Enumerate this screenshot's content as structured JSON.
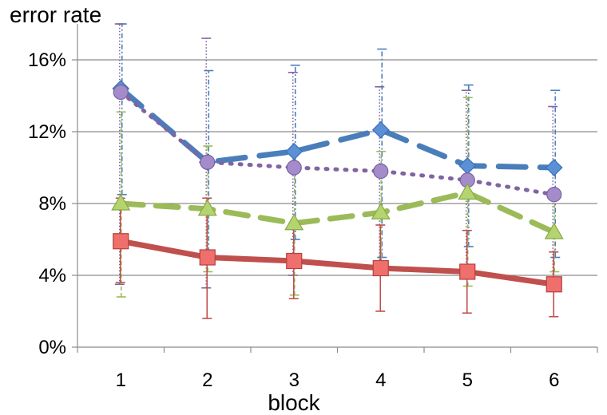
{
  "chart_data": {
    "type": "line",
    "title": "",
    "xlabel": "block",
    "ylabel": "error rate",
    "x": [
      1,
      2,
      3,
      4,
      5,
      6
    ],
    "ylim": [
      0,
      18
    ],
    "yticks": [
      0,
      4,
      8,
      12,
      16
    ],
    "ytick_labels": [
      "0%",
      "4%",
      "8%",
      "12%",
      "16%"
    ],
    "xtick_labels": [
      "1",
      "2",
      "3",
      "4",
      "5",
      "6"
    ],
    "grid": "horizontal",
    "legend": "none",
    "series": [
      {
        "marker": "diamond",
        "color": "#4a7ebb",
        "line_style": "dashed-long",
        "values": [
          14.4,
          10.3,
          10.9,
          12.1,
          10.1,
          10.0
        ],
        "err_low": [
          8.5,
          5.3,
          6.0,
          5.0,
          5.6,
          5.0
        ],
        "err_high": [
          18.0,
          15.4,
          15.7,
          16.6,
          14.6,
          14.3
        ]
      },
      {
        "marker": "circle",
        "color": "#8064a2",
        "line_style": "dotted",
        "values": [
          14.2,
          10.3,
          10.0,
          9.8,
          9.3,
          8.5
        ],
        "err_low": [
          3.5,
          3.3,
          4.0,
          4.5,
          4.0,
          3.7
        ],
        "err_high": [
          18.0,
          17.2,
          15.3,
          14.5,
          14.3,
          13.4
        ]
      },
      {
        "marker": "triangle",
        "color": "#9bbb59",
        "line_style": "dashed",
        "values": [
          8.0,
          7.7,
          6.9,
          7.5,
          8.6,
          6.4
        ],
        "err_low": [
          2.8,
          4.2,
          2.9,
          4.1,
          3.4,
          4.2
        ],
        "err_high": [
          13.1,
          11.2,
          10.8,
          10.9,
          13.9,
          8.4
        ]
      },
      {
        "marker": "square",
        "color": "#c0504d",
        "line_style": "solid",
        "values": [
          5.9,
          5.0,
          4.8,
          4.4,
          4.2,
          3.5
        ],
        "err_low": [
          3.6,
          1.6,
          2.7,
          2.0,
          1.9,
          1.7
        ],
        "err_high": [
          8.3,
          8.3,
          6.9,
          6.8,
          6.5,
          5.3
        ]
      }
    ]
  }
}
